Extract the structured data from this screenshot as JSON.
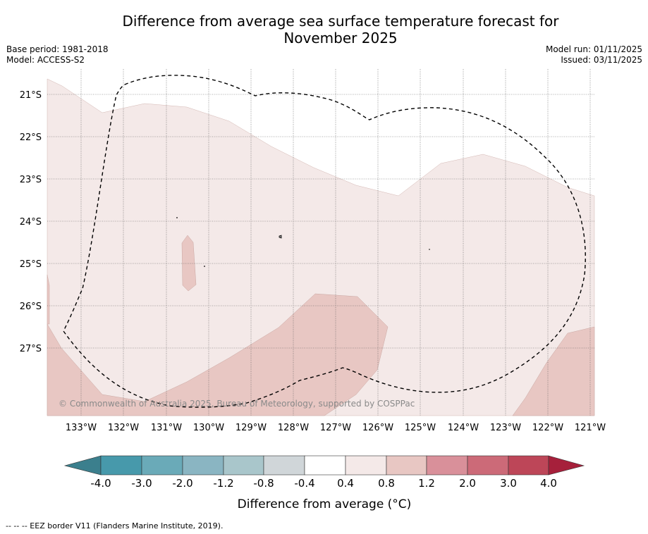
{
  "header": {
    "title_line1": "Difference from average sea surface temperature forecast for",
    "title_line2": "November 2025",
    "base_period": "Base period: 1981-2018",
    "model": "Model: ACCESS-S2",
    "model_run": "Model run: 01/11/2025",
    "issued": "Issued: 03/11/2025"
  },
  "map": {
    "lon_labels": [
      "133°W",
      "132°W",
      "131°W",
      "130°W",
      "129°W",
      "128°W",
      "127°W",
      "126°W",
      "125°W",
      "124°W",
      "123°W",
      "122°W",
      "121°W"
    ],
    "lat_labels": [
      "21°S",
      "22°S",
      "23°S",
      "24°S",
      "25°S",
      "26°S",
      "27°S"
    ],
    "copyright": "© Commonwealth of Australia 2025, Bureau of Meteorology, supported by COSPPac",
    "colors": {
      "land_none": "#ffffff",
      "anomaly_0_4_to_0_8": "#f4e9e8",
      "anomaly_0_8_to_1_2": "#e8c7c3"
    }
  },
  "colorbar": {
    "tick_labels": [
      "-4.0",
      "-3.0",
      "-2.0",
      "-1.2",
      "-0.8",
      "-0.4",
      "0.4",
      "0.8",
      "1.2",
      "2.0",
      "3.0",
      "4.0"
    ],
    "label": "Difference from average (°C)",
    "colors": [
      "#4799ab",
      "#6aaab8",
      "#8ab5c2",
      "#a9c6cb",
      "#d0d6d9",
      "#ffffff",
      "#f4e9e8",
      "#e8c7c3",
      "#d9909a",
      "#cc6a78",
      "#bd4658"
    ],
    "low_extend_color": "#3b7f8d",
    "high_extend_color": "#a6203b"
  },
  "footnote": "--  --  -- EEZ border V11 (Flanders Marine Institute, 2019)."
}
